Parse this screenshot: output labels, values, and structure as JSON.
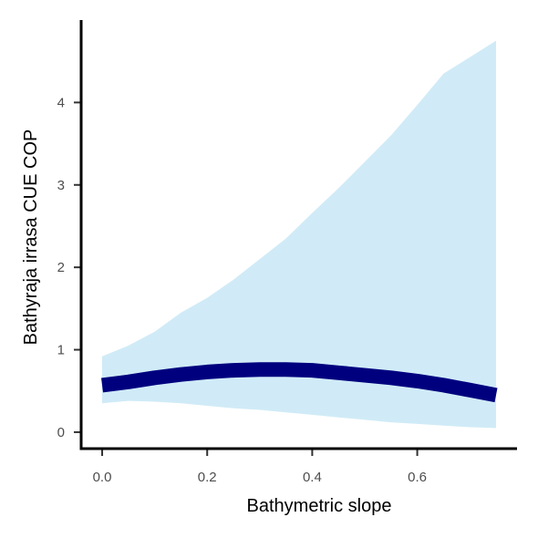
{
  "chart_data": {
    "type": "line",
    "xlabel": "Bathymetric slope",
    "ylabel": "Bathyraja irrasa  CUE COP",
    "xlim": [
      -0.04,
      0.79
    ],
    "ylim": [
      -0.2,
      5.0
    ],
    "x_ticks": [
      0.0,
      0.2,
      0.4,
      0.6
    ],
    "x_tick_labels": [
      "0.0",
      "0.2",
      "0.4",
      "0.6"
    ],
    "y_ticks": [
      0,
      1,
      2,
      3,
      4
    ],
    "y_tick_labels": [
      "0",
      "1",
      "2",
      "3",
      "4"
    ],
    "grid": false,
    "series": [
      {
        "x": [
          0.0,
          0.05,
          0.1,
          0.15,
          0.2,
          0.25,
          0.3,
          0.35,
          0.4,
          0.45,
          0.5,
          0.55,
          0.6,
          0.65,
          0.7,
          0.75
        ],
        "y": [
          0.57,
          0.61,
          0.66,
          0.7,
          0.73,
          0.75,
          0.76,
          0.76,
          0.75,
          0.72,
          0.69,
          0.66,
          0.62,
          0.57,
          0.51,
          0.45
        ],
        "lower": [
          0.35,
          0.38,
          0.37,
          0.35,
          0.32,
          0.29,
          0.27,
          0.24,
          0.21,
          0.18,
          0.15,
          0.12,
          0.1,
          0.08,
          0.06,
          0.05
        ],
        "upper": [
          0.92,
          1.05,
          1.22,
          1.45,
          1.63,
          1.85,
          2.1,
          2.35,
          2.66,
          2.96,
          3.28,
          3.6,
          3.97,
          4.35,
          4.55,
          4.75
        ]
      }
    ],
    "colors": {
      "line": "#00007f",
      "band": "#d0ebf7",
      "axis": "#000000",
      "tick": "#333333",
      "tick_label": "#4d4d4d"
    }
  }
}
